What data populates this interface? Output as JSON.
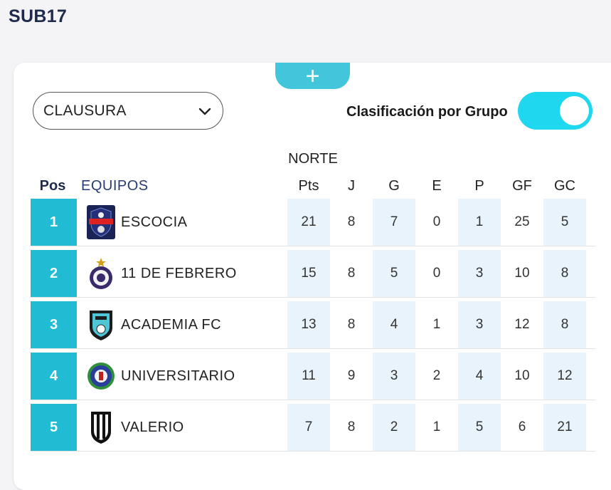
{
  "page": {
    "title": "SUB17"
  },
  "add_button": {
    "label": "+"
  },
  "season_select": {
    "value": "CLAUSURA"
  },
  "toggle": {
    "label": "Clasificación por Grupo",
    "on": true
  },
  "colors": {
    "accent": "#21bcd4",
    "toggle": "#1fd7ef",
    "shade": "#e8f3fb",
    "title": "#1f2b4d"
  },
  "table": {
    "group": "NORTE",
    "headers": {
      "pos": "Pos",
      "team": "EQUIPOS",
      "pts": "Pts",
      "j": "J",
      "g": "G",
      "e": "E",
      "p": "P",
      "gf": "GF",
      "gc": "GC"
    },
    "rows": [
      {
        "pos": "1",
        "team": "ESCOCIA",
        "logo": "escocia-crest-icon",
        "pts": "21",
        "j": "8",
        "g": "7",
        "e": "0",
        "p": "1",
        "gf": "25",
        "gc": "5"
      },
      {
        "pos": "2",
        "team": "11 DE FEBRERO",
        "logo": "11-de-febrero-crest-icon",
        "pts": "15",
        "j": "8",
        "g": "5",
        "e": "0",
        "p": "3",
        "gf": "10",
        "gc": "8"
      },
      {
        "pos": "3",
        "team": "ACADEMIA FC",
        "logo": "academia-fc-crest-icon",
        "pts": "13",
        "j": "8",
        "g": "4",
        "e": "1",
        "p": "3",
        "gf": "12",
        "gc": "8"
      },
      {
        "pos": "4",
        "team": "UNIVERSITARIO",
        "logo": "universitario-crest-icon",
        "pts": "11",
        "j": "9",
        "g": "3",
        "e": "2",
        "p": "4",
        "gf": "10",
        "gc": "12"
      },
      {
        "pos": "5",
        "team": "VALERIO",
        "logo": "valerio-crest-icon",
        "pts": "7",
        "j": "8",
        "g": "2",
        "e": "1",
        "p": "5",
        "gf": "6",
        "gc": "21"
      }
    ]
  }
}
